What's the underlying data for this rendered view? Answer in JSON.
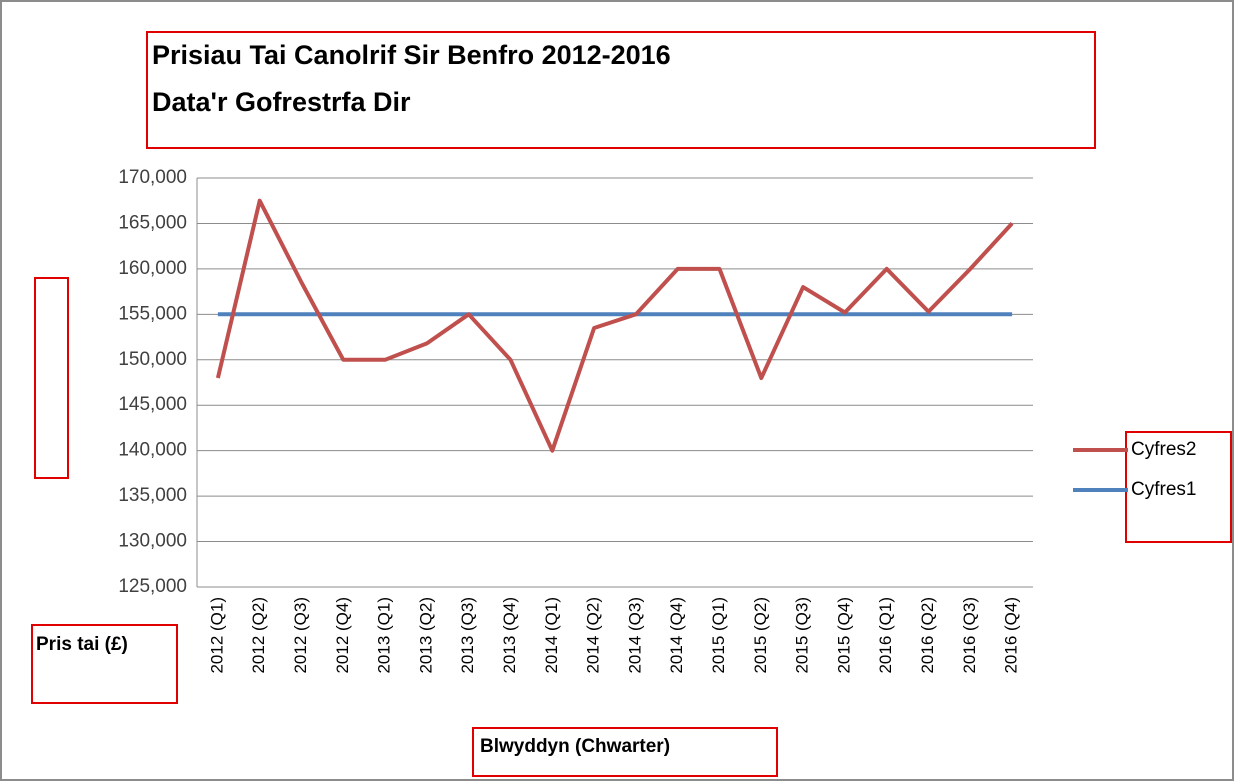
{
  "chart_data": {
    "type": "line",
    "title": "Prisiau Tai Canolrif Sir Benfro 2012-2016",
    "subtitle": "Data'r Gofrestrfa Dir",
    "y_label": "Pris tai (£)",
    "x_label": "Blwyddyn (Chwarter)",
    "categories": [
      "2012 (Q1)",
      "2012 (Q2)",
      "2012 (Q3)",
      "2012 (Q4)",
      "2013 (Q1)",
      "2013 (Q2)",
      "2013 (Q3)",
      "2013 (Q4)",
      "2014 (Q1)",
      "2014 (Q2)",
      "2014 (Q3)",
      "2014 (Q4)",
      "2015 (Q1)",
      "2015 (Q2)",
      "2015 (Q3)",
      "2015 (Q4)",
      "2016 (Q1)",
      "2016 (Q2)",
      "2016 (Q3)",
      "2016 (Q4)"
    ],
    "series": [
      {
        "name": "Cyfres2",
        "color": "#c0504d",
        "values": [
          148000,
          167500,
          158500,
          150000,
          150000,
          151800,
          155000,
          150000,
          140000,
          153500,
          155000,
          160000,
          160000,
          148000,
          158000,
          155200,
          160000,
          155300,
          160000,
          165000
        ]
      },
      {
        "name": "Cyfres1",
        "color": "#4f81bd",
        "values": [
          155000,
          155000,
          155000,
          155000,
          155000,
          155000,
          155000,
          155000,
          155000,
          155000,
          155000,
          155000,
          155000,
          155000,
          155000,
          155000,
          155000,
          155000,
          155000,
          155000
        ]
      }
    ],
    "ylim": [
      125000,
      170000
    ],
    "yticks": [
      {
        "value": 125000,
        "label": "125,000"
      },
      {
        "value": 130000,
        "label": "130,000"
      },
      {
        "value": 135000,
        "label": "135,000"
      },
      {
        "value": 140000,
        "label": "140,000"
      },
      {
        "value": 145000,
        "label": "145,000"
      },
      {
        "value": 150000,
        "label": "150,000"
      },
      {
        "value": 155000,
        "label": "155,000"
      },
      {
        "value": 160000,
        "label": "160,000"
      },
      {
        "value": 165000,
        "label": "165,000"
      },
      {
        "value": 170000,
        "label": "170,000"
      }
    ],
    "grid": true
  }
}
